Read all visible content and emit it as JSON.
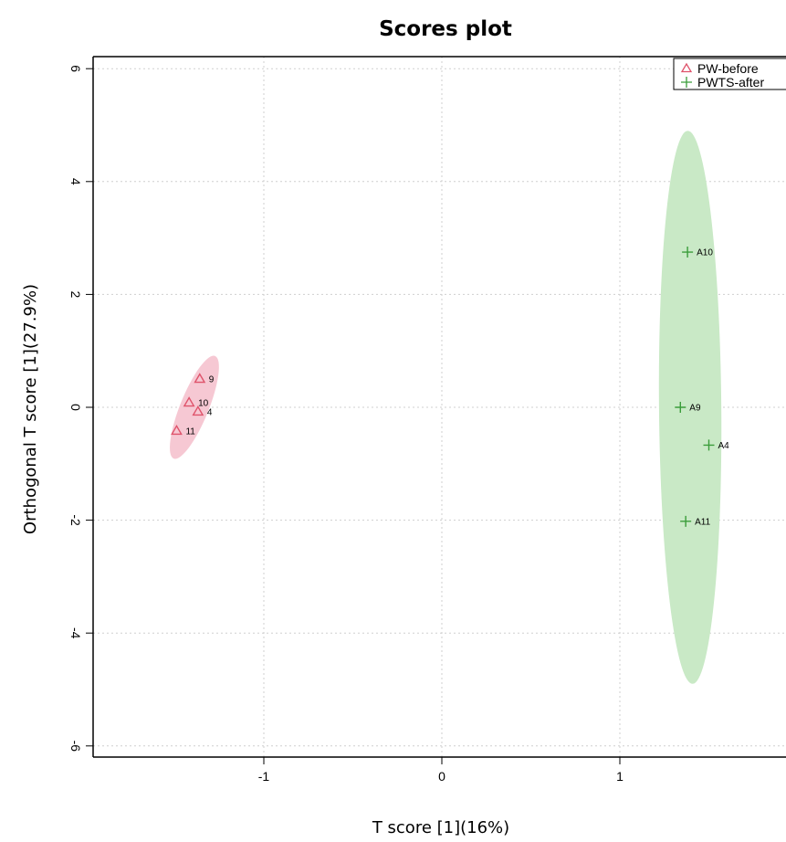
{
  "chart_data": {
    "type": "scatter",
    "title": "Scores plot",
    "xlabel": "T score [1](16%)",
    "ylabel": "Orthogonal T score [1](27.9%)",
    "xlim": [
      -1.95,
      1.95
    ],
    "ylim": [
      -6.2,
      6.1
    ],
    "xticks": [
      -1,
      0,
      1
    ],
    "yticks": [
      -6,
      -4,
      -2,
      0,
      2,
      4,
      6
    ],
    "grid": true,
    "legend_position": "top-right",
    "series": [
      {
        "name": "PW-before",
        "marker": "triangle",
        "color": "#df536b",
        "ellipse_color": "#f6c8d3",
        "points": [
          {
            "label": "9",
            "x": -1.36,
            "y": 0.5
          },
          {
            "label": "10",
            "x": -1.42,
            "y": 0.08
          },
          {
            "label": "4",
            "x": -1.37,
            "y": -0.08
          },
          {
            "label": "11",
            "x": -1.49,
            "y": -0.42
          }
        ]
      },
      {
        "name": "PWTS-after",
        "marker": "plus",
        "color": "#3a9d3a",
        "ellipse_color": "#c9e9c6",
        "points": [
          {
            "label": "A10",
            "x": 1.38,
            "y": 2.75
          },
          {
            "label": "A9",
            "x": 1.34,
            "y": 0.0
          },
          {
            "label": "A4",
            "x": 1.5,
            "y": -0.67
          },
          {
            "label": "A11",
            "x": 1.37,
            "y": -2.02
          }
        ]
      }
    ]
  }
}
